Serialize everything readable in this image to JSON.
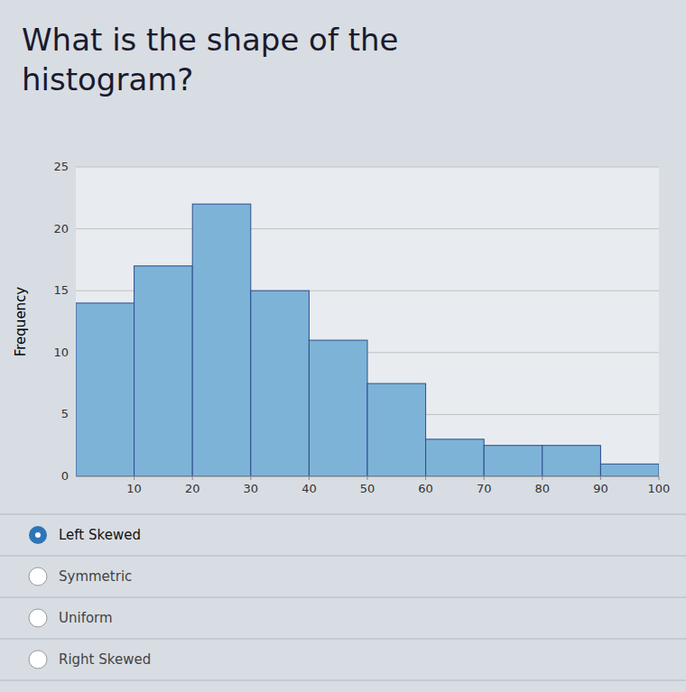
{
  "chart_data": {
    "type": "histogram",
    "title": "What is the shape of the histogram?",
    "bins": [
      0,
      10,
      20,
      30,
      40,
      50,
      60,
      70,
      80,
      90,
      100
    ],
    "values": [
      14,
      17,
      22,
      15,
      11,
      7.5,
      3,
      2.5,
      2.5,
      1
    ],
    "color": "#7EB3D8",
    "y_label": "Frequency",
    "xlim": [
      0,
      100
    ],
    "xticks": [
      10,
      20,
      30,
      40,
      50,
      60,
      70,
      80,
      90,
      100
    ],
    "ylim": [
      0,
      25
    ],
    "yticks": [
      0,
      5,
      10,
      15,
      20,
      25
    ],
    "grid": true,
    "options": [
      {
        "text": "Left Skewed",
        "selected": true
      },
      {
        "text": "Symmetric",
        "selected": false
      },
      {
        "text": "Uniform",
        "selected": false
      },
      {
        "text": "Right Skewed",
        "selected": false
      }
    ]
  }
}
